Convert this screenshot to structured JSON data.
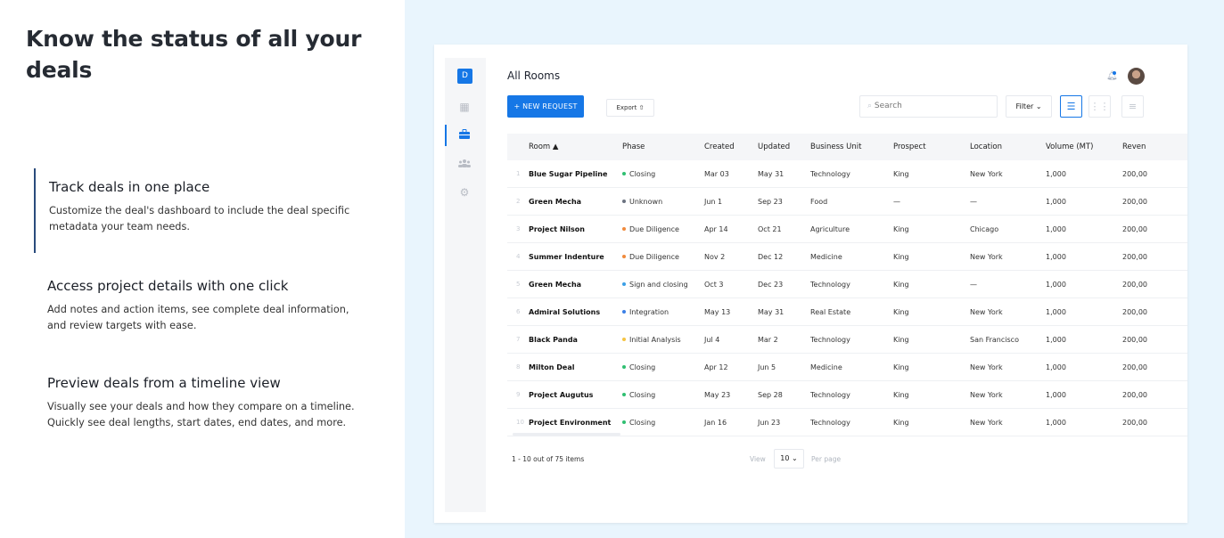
{
  "marketing": {
    "headline": "Know the status of all your deals",
    "features": [
      {
        "title": "Track deals in one place",
        "body": "Customize the deal's dashboard to include the deal specific metadata your team needs."
      },
      {
        "title": "Access project details with one click",
        "body": "Add notes and action items, see complete deal information, and review targets with ease."
      },
      {
        "title": "Preview deals from a timeline view",
        "body": "Visually see your deals and how they compare on a timeline. Quickly see deal lengths, start dates, end dates, and more."
      }
    ]
  },
  "app": {
    "logo_letter": "D",
    "title": "All Rooms",
    "new_request_label": "+ NEW REQUEST",
    "export_label": "Export ⇧",
    "search_placeholder": "Search",
    "filter_label": "Filter ⌄",
    "columns": [
      "Room ▲",
      "Phase",
      "Created",
      "Updated",
      "Business Unit",
      "Prospect",
      "Location",
      "Volume (MT)",
      "Reven"
    ],
    "phase_colors": {
      "Closing": "#2fbf71",
      "Unknown": "#6b7280",
      "Due Diligence": "#f08a3c",
      "Sign and closing": "#3b9fe6",
      "Integration": "#3b7fe6",
      "Initial Analysis": "#f5c443"
    },
    "rows": [
      {
        "n": "1",
        "room": "Blue Sugar Pipeline",
        "phase": "Closing",
        "created": "Mar 03",
        "updated": "May 31",
        "unit": "Technology",
        "prospect": "King",
        "location": "New York",
        "volume": "1,000",
        "revenue": "200,00"
      },
      {
        "n": "2",
        "room": "Green Mecha",
        "phase": "Unknown",
        "created": "Jun 1",
        "updated": "Sep 23",
        "unit": "Food",
        "prospect": "—",
        "location": "—",
        "volume": "1,000",
        "revenue": "200,00"
      },
      {
        "n": "3",
        "room": "Project Nilson",
        "phase": "Due Diligence",
        "created": "Apr 14",
        "updated": "Oct 21",
        "unit": "Agriculture",
        "prospect": "King",
        "location": "Chicago",
        "volume": "1,000",
        "revenue": "200,00"
      },
      {
        "n": "4",
        "room": "Summer Indenture",
        "phase": "Due Diligence",
        "created": "Nov 2",
        "updated": "Dec 12",
        "unit": "Medicine",
        "prospect": "King",
        "location": "New York",
        "volume": "1,000",
        "revenue": "200,00"
      },
      {
        "n": "5",
        "room": "Green Mecha",
        "phase": "Sign and closing",
        "created": "Oct 3",
        "updated": "Dec 23",
        "unit": "Technology",
        "prospect": "King",
        "location": "—",
        "volume": "1,000",
        "revenue": "200,00"
      },
      {
        "n": "6",
        "room": "Admiral Solutions",
        "phase": "Integration",
        "created": "May 13",
        "updated": "May 31",
        "unit": "Real Estate",
        "prospect": "King",
        "location": "New York",
        "volume": "1,000",
        "revenue": "200,00"
      },
      {
        "n": "7",
        "room": "Black Panda",
        "phase": "Initial Analysis",
        "created": "Jul 4",
        "updated": "Mar 2",
        "unit": "Technology",
        "prospect": "King",
        "location": "San Francisco",
        "volume": "1,000",
        "revenue": "200,00"
      },
      {
        "n": "8",
        "room": "Milton Deal",
        "phase": "Closing",
        "created": "Apr 12",
        "updated": "Jun 5",
        "unit": "Medicine",
        "prospect": "King",
        "location": "New York",
        "volume": "1,000",
        "revenue": "200,00"
      },
      {
        "n": "9",
        "room": "Project Augutus",
        "phase": "Closing",
        "created": "May 23",
        "updated": "Sep 28",
        "unit": "Technology",
        "prospect": "King",
        "location": "New York",
        "volume": "1,000",
        "revenue": "200,00"
      },
      {
        "n": "10",
        "room": "Project Environment",
        "phase": "Closing",
        "created": "Jan 16",
        "updated": "Jun 23",
        "unit": "Technology",
        "prospect": "King",
        "location": "New York",
        "volume": "1,000",
        "revenue": "200,00"
      }
    ],
    "footer": {
      "count_text": "1 - 10 out of 75 items",
      "view_label": "View",
      "per_page_value": "10 ⌄",
      "per_page_label": "Per page"
    }
  }
}
